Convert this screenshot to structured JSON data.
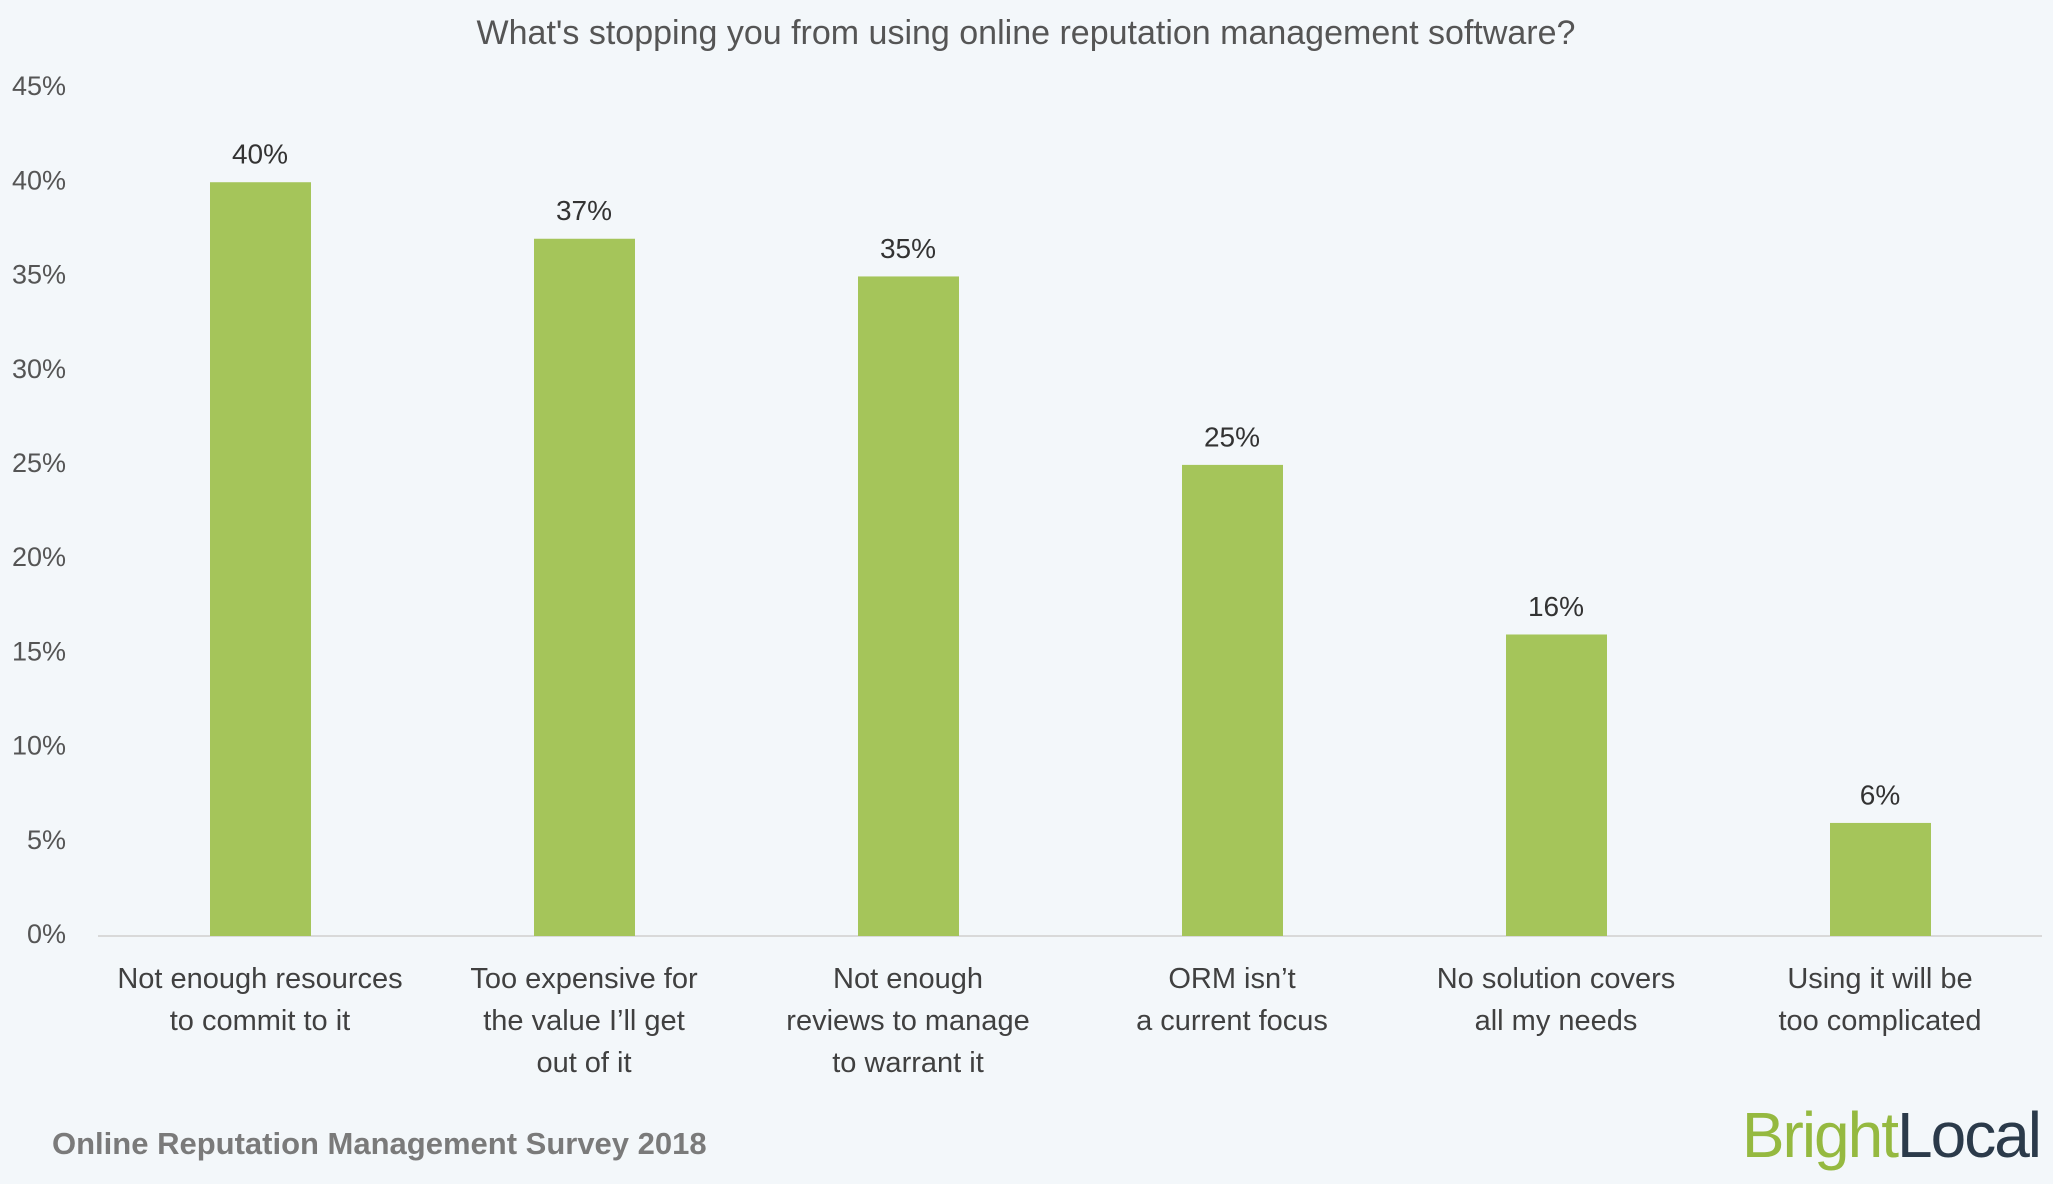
{
  "chart_data": {
    "type": "bar",
    "title": "What's stopping you from using online reputation management software?",
    "categories": [
      "Not enough resources\nto commit to it",
      "Too expensive for\nthe value I’ll get\nout of it",
      "Not enough\nreviews to manage\nto warrant it",
      "ORM isn’t\na current focus",
      "No solution covers\nall my needs",
      "Using it will be\ntoo complicated"
    ],
    "values": [
      40,
      37,
      35,
      25,
      16,
      6
    ],
    "value_labels": [
      "40%",
      "37%",
      "35%",
      "25%",
      "16%",
      "6%"
    ],
    "color": "#a5c55a",
    "ylim": [
      0,
      45
    ],
    "yticks": [
      {
        "value": 0,
        "label": "0%"
      },
      {
        "value": 5,
        "label": "5%"
      },
      {
        "value": 10,
        "label": "10%"
      },
      {
        "value": 15,
        "label": "15%"
      },
      {
        "value": 20,
        "label": "20%"
      },
      {
        "value": 25,
        "label": "25%"
      },
      {
        "value": 30,
        "label": "30%"
      },
      {
        "value": 35,
        "label": "35%"
      },
      {
        "value": 40,
        "label": "40%"
      },
      {
        "value": 45,
        "label": "45%"
      }
    ],
    "grid": false
  },
  "footer": {
    "source": "Online Reputation Management Survey 2018",
    "logo_bright": "Bright",
    "logo_local": "Local"
  }
}
